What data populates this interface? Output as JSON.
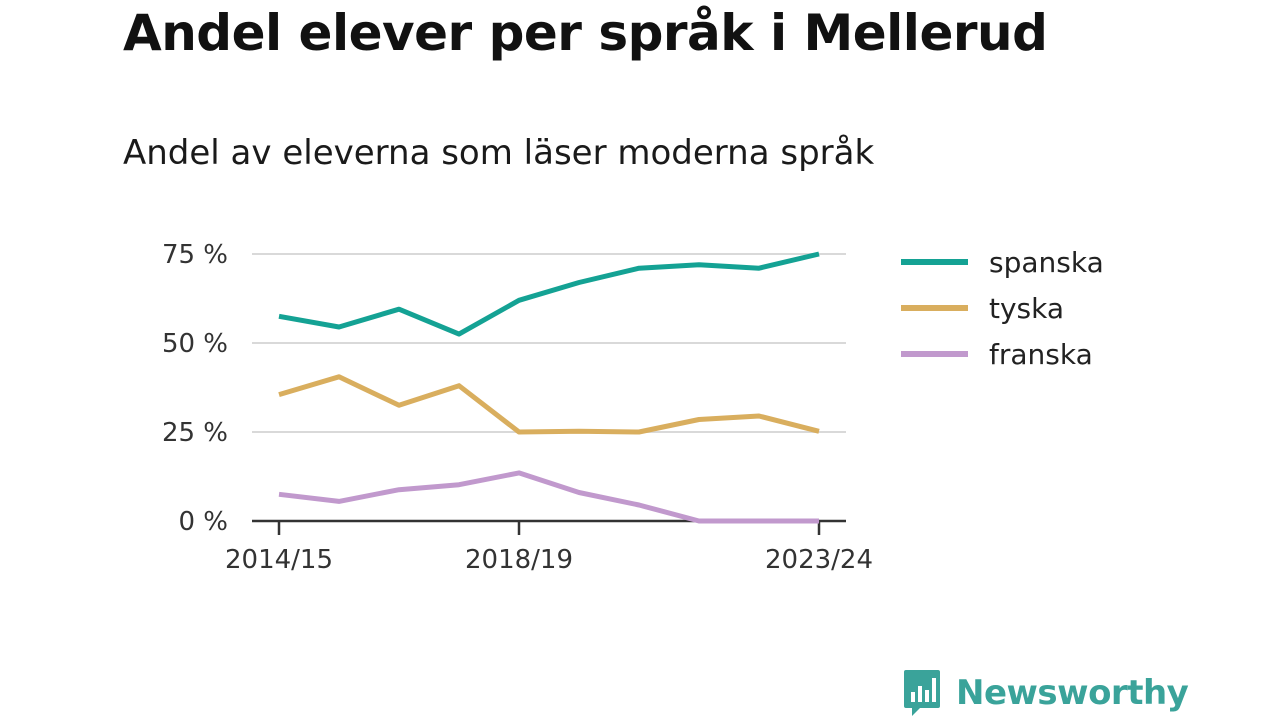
{
  "title": "Andel elever per språk i Mellerud",
  "subtitle": "Andel av eleverna som läser moderna språk",
  "brand": {
    "name": "Newsworthy",
    "icon": "newsworthy-logo-icon",
    "color": "#3aa39a"
  },
  "chart_data": {
    "type": "line",
    "x": [
      "2014/15",
      "2015/16",
      "2016/17",
      "2017/18",
      "2018/19",
      "2019/20",
      "2020/21",
      "2021/22",
      "2022/23",
      "2023/24"
    ],
    "x_tick_labels": [
      "2014/15",
      "2018/19",
      "2023/24"
    ],
    "y_ticks": [
      0,
      25,
      50,
      75
    ],
    "y_tick_labels": [
      "0 %",
      "25 %",
      "50 %",
      "75 %"
    ],
    "ylim": [
      0,
      75
    ],
    "grid": true,
    "legend_position": "right",
    "series": [
      {
        "name": "spanska",
        "color": "#14a294",
        "values": [
          57.5,
          54.5,
          59.5,
          52.5,
          62,
          67,
          71,
          72,
          71,
          75
        ]
      },
      {
        "name": "tyska",
        "color": "#d9ae5e",
        "values": [
          35.5,
          40.5,
          32.5,
          38,
          25,
          25.2,
          25,
          28.5,
          29.5,
          25.2
        ]
      },
      {
        "name": "franska",
        "color": "#c199cd",
        "values": [
          7.5,
          5.5,
          8.8,
          10.2,
          13.5,
          8,
          4.5,
          0,
          0,
          0
        ]
      }
    ]
  }
}
